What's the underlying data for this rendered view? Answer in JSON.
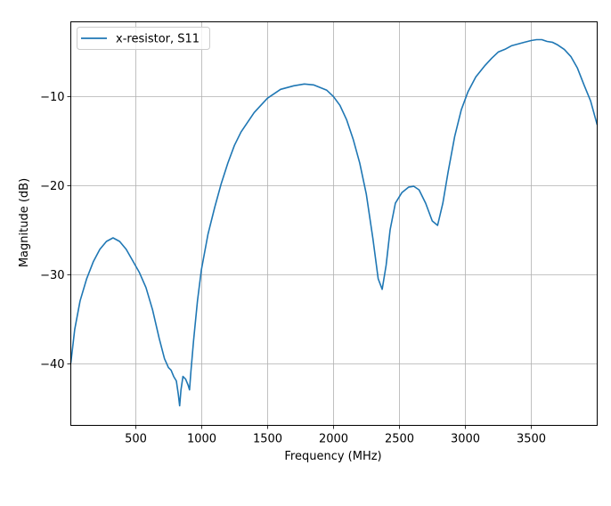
{
  "chart_data": {
    "type": "line",
    "title": "",
    "xlabel": "Frequency (MHz)",
    "ylabel": "Magnitude (dB)",
    "xlim": [
      10,
      4000
    ],
    "ylim": [
      -47,
      -1.6
    ],
    "grid": true,
    "legend_position": "upper left",
    "x_ticks": [
      500,
      1000,
      1500,
      2000,
      2500,
      3000,
      3500
    ],
    "x_tick_labels": [
      "500",
      "1000",
      "1500",
      "2000",
      "2500",
      "3000",
      "3500"
    ],
    "y_ticks": [
      -10,
      -20,
      -30,
      -40
    ],
    "y_tick_labels": [
      "−10",
      "−20",
      "−30",
      "−40"
    ],
    "series": [
      {
        "name": "x-resistor, S11",
        "color": "#1f77b4",
        "x": [
          10,
          40,
          80,
          130,
          180,
          230,
          280,
          330,
          380,
          430,
          480,
          530,
          580,
          630,
          680,
          720,
          750,
          770,
          790,
          810,
          825,
          835,
          845,
          860,
          880,
          900,
          910,
          920,
          940,
          970,
          1000,
          1050,
          1100,
          1150,
          1200,
          1250,
          1300,
          1400,
          1500,
          1600,
          1700,
          1780,
          1850,
          1950,
          2000,
          2050,
          2100,
          2150,
          2200,
          2250,
          2300,
          2340,
          2370,
          2400,
          2430,
          2470,
          2520,
          2570,
          2610,
          2650,
          2700,
          2750,
          2790,
          2830,
          2870,
          2920,
          2970,
          3020,
          3080,
          3150,
          3200,
          3250,
          3300,
          3350,
          3400,
          3450,
          3500,
          3540,
          3580,
          3620,
          3660,
          3700,
          3750,
          3800,
          3850,
          3900,
          3950,
          4000
        ],
        "values": [
          -40.0,
          -36.2,
          -33.0,
          -30.5,
          -28.6,
          -27.2,
          -26.3,
          -25.9,
          -26.3,
          -27.2,
          -28.5,
          -29.8,
          -31.5,
          -34.0,
          -37.2,
          -39.5,
          -40.5,
          -40.8,
          -41.5,
          -42.0,
          -43.5,
          -44.8,
          -43.0,
          -41.5,
          -41.8,
          -42.5,
          -43.0,
          -41.0,
          -37.5,
          -33.0,
          -29.5,
          -25.5,
          -22.5,
          -19.8,
          -17.5,
          -15.5,
          -14.0,
          -11.8,
          -10.2,
          -9.2,
          -8.8,
          -8.6,
          -8.7,
          -9.3,
          -10.0,
          -11.0,
          -12.6,
          -14.8,
          -17.5,
          -21.0,
          -26.0,
          -30.5,
          -31.7,
          -29.0,
          -25.0,
          -22.0,
          -20.8,
          -20.2,
          -20.1,
          -20.5,
          -22.0,
          -24.0,
          -24.5,
          -22.0,
          -18.5,
          -14.5,
          -11.5,
          -9.5,
          -7.8,
          -6.5,
          -5.7,
          -5.0,
          -4.7,
          -4.3,
          -4.1,
          -3.9,
          -3.7,
          -3.6,
          -3.6,
          -3.8,
          -3.9,
          -4.2,
          -4.7,
          -5.5,
          -6.8,
          -8.7,
          -10.5,
          -13.2
        ]
      }
    ]
  },
  "legend": {
    "items": [
      {
        "label": "x-resistor, S11",
        "color": "#1f77b4"
      }
    ]
  },
  "axes": {
    "xlabel": "Frequency (MHz)",
    "ylabel": "Magnitude (dB)",
    "x_tick_labels": [
      "500",
      "1000",
      "1500",
      "2000",
      "2500",
      "3000",
      "3500"
    ],
    "y_tick_labels": [
      "−10",
      "−20",
      "−30",
      "−40"
    ]
  }
}
